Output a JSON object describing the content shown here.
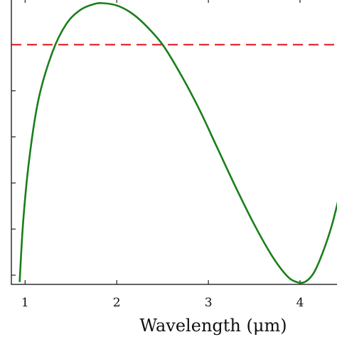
{
  "chart_data": {
    "type": "line",
    "title": "",
    "xlabel": "Wavelength (μm)",
    "ylabel": "",
    "xlim": [
      0.85,
      4.45
    ],
    "ylim": [
      0.8,
      7.0
    ],
    "x_ticks": [
      1,
      2,
      3,
      4
    ],
    "x_tick_labels": [
      "1",
      "2",
      "3",
      "4"
    ],
    "y_ticks": [
      1,
      2,
      3,
      4,
      5,
      6,
      7
    ],
    "y_tick_labels": [
      "",
      "",
      "",
      "",
      "",
      "",
      ""
    ],
    "grid": false,
    "series": [
      {
        "color": "#1a7f1a",
        "style": "solid",
        "x": [
          0.94,
          0.98,
          1.05,
          1.15,
          1.3,
          1.45,
          1.6,
          1.75,
          1.85,
          2.0,
          2.15,
          2.3,
          2.5,
          2.7,
          2.9,
          3.1,
          3.3,
          3.5,
          3.7,
          3.85,
          3.95,
          4.05,
          4.15,
          4.25,
          4.35,
          4.45
        ],
        "y": [
          0.85,
          2.2,
          3.6,
          4.85,
          5.85,
          6.45,
          6.75,
          6.88,
          6.9,
          6.85,
          6.7,
          6.45,
          6.0,
          5.35,
          4.6,
          3.75,
          2.9,
          2.1,
          1.4,
          1.0,
          0.86,
          0.85,
          1.05,
          1.5,
          2.1,
          2.9
        ]
      },
      {
        "color": "#e0202a",
        "style": "dashed",
        "x": [
          0.85,
          4.45
        ],
        "y": [
          6.0,
          6.0
        ]
      }
    ]
  }
}
